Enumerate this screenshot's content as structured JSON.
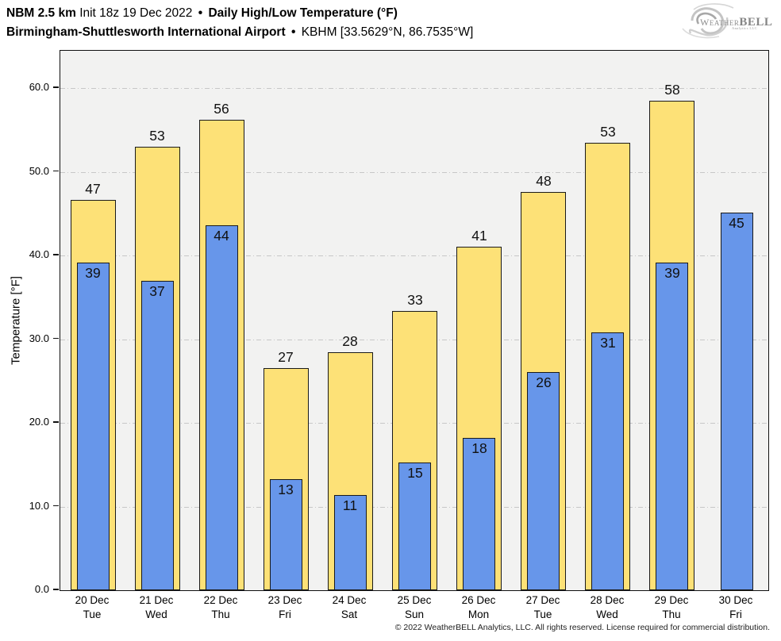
{
  "header": {
    "title_model": "NBM 2.5 km",
    "title_init": "Init 18z 19 Dec 2022",
    "sep1": "•",
    "title_product": "Daily High/Low Temperature (°F)",
    "subtitle_station": "Birmingham-Shuttlesworth International Airport",
    "sep2": "•",
    "subtitle_coords": "KBHM [33.5629°N, 86.7535°W]"
  },
  "logo": {
    "word_first_letter": "W",
    "word_rest": "EATHER",
    "word_bold": "BELL",
    "subtext": "Analytics LLC"
  },
  "chart_data": {
    "type": "bar",
    "title": "Daily High/Low Temperature (°F)",
    "ylabel": "Temperature [°F]",
    "ylim": [
      0,
      64.5
    ],
    "yticks": [
      0,
      10,
      20,
      30,
      40,
      50,
      60
    ],
    "ytick_labels": [
      "0.0",
      "10.0",
      "20.0",
      "30.0",
      "40.0",
      "50.0",
      "60.0"
    ],
    "grid": "horizontal dash-dot",
    "legend": "none",
    "colors": {
      "high_fill": "#fde177",
      "low_fill": "#6796ea",
      "bar_border": "#1a1a1a",
      "plot_background": "#f2f2f1",
      "gridline": "#c7c7c7"
    },
    "categories": [
      {
        "date": "20 Dec",
        "day": "Tue"
      },
      {
        "date": "21 Dec",
        "day": "Wed"
      },
      {
        "date": "22 Dec",
        "day": "Thu"
      },
      {
        "date": "23 Dec",
        "day": "Fri"
      },
      {
        "date": "24 Dec",
        "day": "Sat"
      },
      {
        "date": "25 Dec",
        "day": "Sun"
      },
      {
        "date": "26 Dec",
        "day": "Mon"
      },
      {
        "date": "27 Dec",
        "day": "Tue"
      },
      {
        "date": "28 Dec",
        "day": "Wed"
      },
      {
        "date": "29 Dec",
        "day": "Thu"
      },
      {
        "date": "30 Dec",
        "day": "Fri"
      }
    ],
    "series": [
      {
        "name": "High",
        "values": [
          46.6,
          53.0,
          56.2,
          26.5,
          28.4,
          33.4,
          41.0,
          47.6,
          53.5,
          58.5,
          null
        ],
        "labels": [
          "47",
          "53",
          "56",
          "27",
          "28",
          "33",
          "41",
          "48",
          "53",
          "58",
          ""
        ]
      },
      {
        "name": "Low",
        "values": [
          39.1,
          37.0,
          43.6,
          13.3,
          11.4,
          15.3,
          18.2,
          26.1,
          30.8,
          39.1,
          45.1
        ],
        "labels": [
          "39",
          "37",
          "44",
          "13",
          "11",
          "15",
          "18",
          "26",
          "31",
          "39",
          "45"
        ]
      }
    ]
  },
  "footer": {
    "copyright": "© 2022 WeatherBELL Analytics, LLC. All rights reserved. License required for commercial distribution."
  }
}
